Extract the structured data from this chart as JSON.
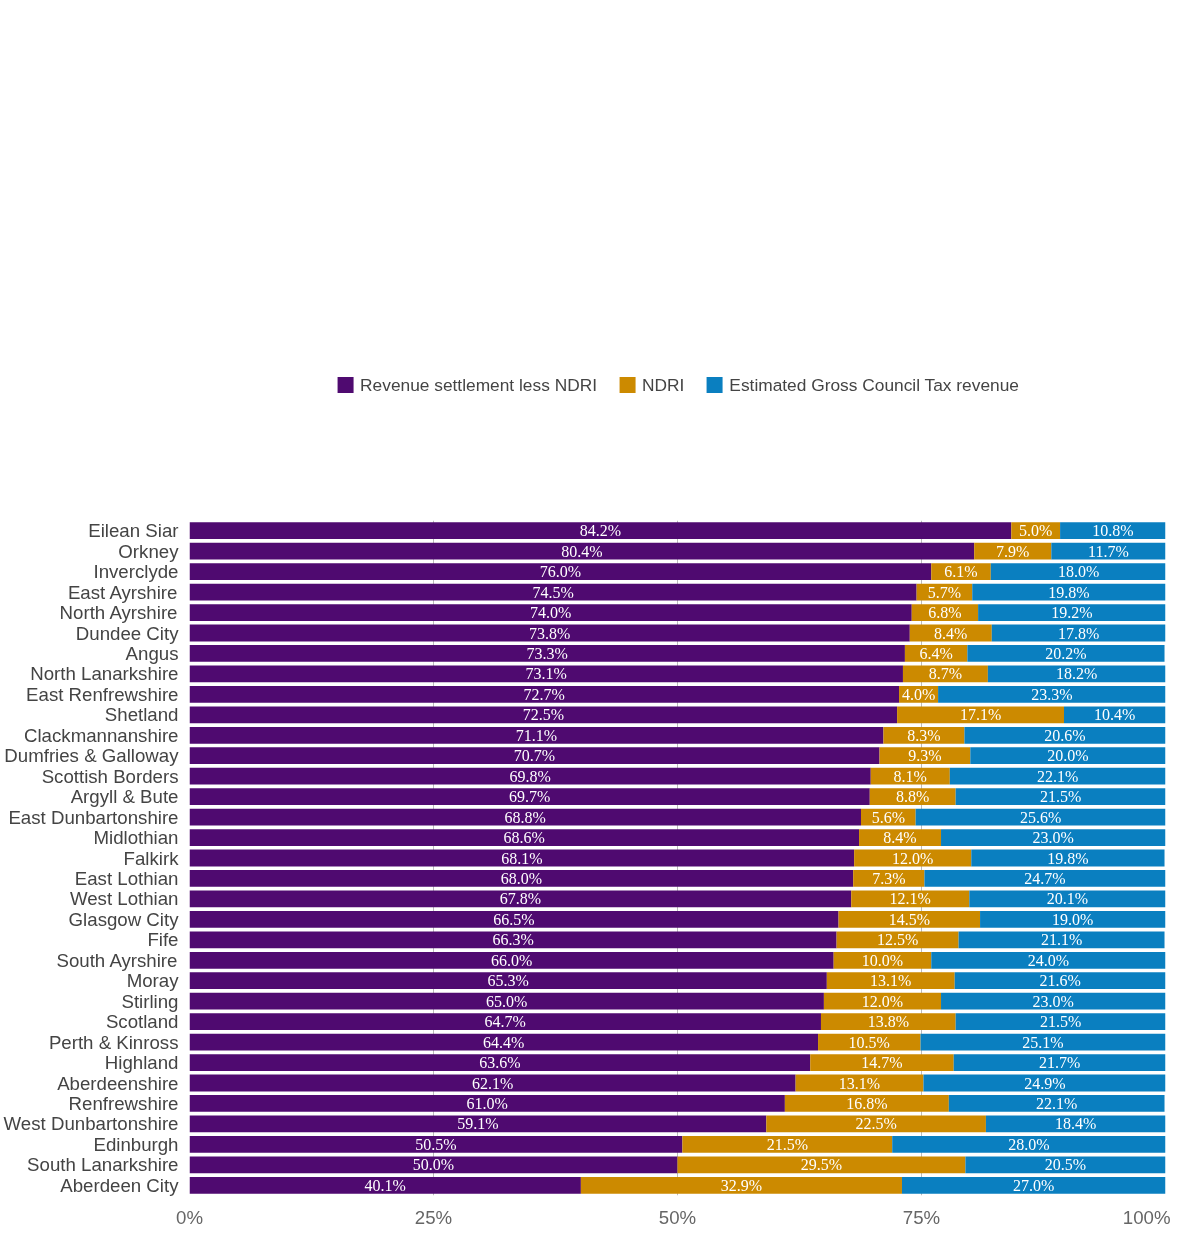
{
  "chart_data": {
    "type": "bar",
    "orientation": "horizontal",
    "stacked": true,
    "categories": [
      "Eilean Siar",
      "Orkney",
      "Inverclyde",
      "East Ayrshire",
      "North Ayrshire",
      "Dundee City",
      "Angus",
      "North Lanarkshire",
      "East Renfrewshire",
      "Shetland",
      "Clackmannanshire",
      "Dumfries & Galloway",
      "Scottish Borders",
      "Argyll & Bute",
      "East Dunbartonshire",
      "Midlothian",
      "Falkirk",
      "East Lothian",
      "West Lothian",
      "Glasgow City",
      "Fife",
      "South Ayrshire",
      "Moray",
      "Stirling",
      "Scotland",
      "Perth & Kinross",
      "Highland",
      "Aberdeenshire",
      "Renfrewshire",
      "West Dunbartonshire",
      "Edinburgh",
      "South Lanarkshire",
      "Aberdeen City"
    ],
    "series": [
      {
        "name": "Revenue settlement less NDRI",
        "color": "#4f0a70",
        "values": [
          84.2,
          80.4,
          76.0,
          74.5,
          74.0,
          73.8,
          73.3,
          73.1,
          72.7,
          72.5,
          71.1,
          70.7,
          69.8,
          69.7,
          68.8,
          68.6,
          68.1,
          68.0,
          67.8,
          66.5,
          66.3,
          66.0,
          65.3,
          65.0,
          64.7,
          64.4,
          63.6,
          62.1,
          61.0,
          59.1,
          50.5,
          50.0,
          40.1
        ],
        "value_labels": [
          "84.2%",
          "80.4%",
          "76.0%",
          "74.5%",
          "74.0%",
          "73.8%",
          "73.3%",
          "73.1%",
          "72.7%",
          "72.5%",
          "71.1%",
          "70.7%",
          "69.8%",
          "69.7%",
          "68.8%",
          "68.6%",
          "68.1%",
          "68.0%",
          "67.8%",
          "66.5%",
          "66.3%",
          "66.0%",
          "65.3%",
          "65.0%",
          "64.7%",
          "64.4%",
          "63.6%",
          "62.1%",
          "61.0%",
          "59.1%",
          "50.5%",
          "50.0%",
          "40.1%"
        ]
      },
      {
        "name": "NDRI",
        "color": "#cc8a00",
        "values": [
          5.0,
          7.9,
          6.1,
          5.7,
          6.8,
          8.4,
          6.4,
          8.7,
          4.0,
          17.1,
          8.3,
          9.3,
          8.1,
          8.8,
          5.6,
          8.4,
          12.0,
          7.3,
          12.1,
          14.5,
          12.5,
          10.0,
          13.1,
          12.0,
          13.8,
          10.5,
          14.7,
          13.1,
          16.8,
          22.5,
          21.5,
          29.5,
          32.9
        ],
        "value_labels": [
          "5.0%",
          "7.9%",
          "6.1%",
          "5.7%",
          "6.8%",
          "8.4%",
          "6.4%",
          "8.7%",
          "4.0%",
          "17.1%",
          "8.3%",
          "9.3%",
          "8.1%",
          "8.8%",
          "5.6%",
          "8.4%",
          "12.0%",
          "7.3%",
          "12.1%",
          "14.5%",
          "12.5%",
          "10.0%",
          "13.1%",
          "12.0%",
          "13.8%",
          "10.5%",
          "14.7%",
          "13.1%",
          "16.8%",
          "22.5%",
          "21.5%",
          "29.5%",
          "32.9%"
        ]
      },
      {
        "name": "Estimated Gross Council Tax revenue",
        "color": "#0a7fc0",
        "values": [
          10.8,
          11.7,
          18.0,
          19.8,
          19.2,
          17.8,
          20.2,
          18.2,
          23.3,
          10.4,
          20.6,
          20.0,
          22.1,
          21.5,
          25.6,
          23.0,
          19.8,
          24.7,
          20.1,
          19.0,
          21.1,
          24.0,
          21.6,
          23.0,
          21.5,
          25.1,
          21.7,
          24.9,
          22.1,
          18.4,
          28.0,
          20.5,
          27.0
        ],
        "value_labels": [
          "10.8%",
          "11.7%",
          "18.0%",
          "19.8%",
          "19.2%",
          "17.8%",
          "20.2%",
          "18.2%",
          "23.3%",
          "10.4%",
          "20.6%",
          "20.0%",
          "22.1%",
          "21.5%",
          "25.6%",
          "23.0%",
          "19.8%",
          "24.7%",
          "20.1%",
          "19.0%",
          "21.1%",
          "24.0%",
          "21.6%",
          "23.0%",
          "21.5%",
          "25.1%",
          "21.7%",
          "24.9%",
          "22.1%",
          "18.4%",
          "28.0%",
          "20.5%",
          "27.0%"
        ]
      }
    ],
    "xlim": [
      0,
      100
    ],
    "xticks": [
      {
        "value": 0,
        "label": "0%"
      },
      {
        "value": 25,
        "label": "25%"
      },
      {
        "value": 50,
        "label": "50%"
      },
      {
        "value": 75,
        "label": "75%"
      },
      {
        "value": 100,
        "label": "100%"
      }
    ],
    "grid": "x",
    "legend": "top"
  }
}
